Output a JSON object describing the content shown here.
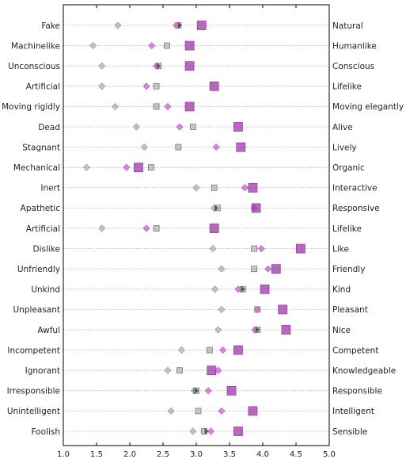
{
  "chart_data": {
    "type": "scatter",
    "title": "",
    "xlabel": "",
    "ylabel": "",
    "xlim": [
      1.0,
      5.0
    ],
    "xticks": [
      "1.0",
      "1.5",
      "2.0",
      "2.5",
      "3.0",
      "3.5",
      "4.0",
      "4.5",
      "5.0"
    ],
    "grid": "horizontal dotted",
    "legend": "none",
    "rows": [
      {
        "left": "Fake",
        "right": "Natural",
        "diamond_gray": 1.82,
        "diamond_pink": 2.7,
        "square_gray": 2.73,
        "square_purple": 3.08,
        "arrow": 2.75
      },
      {
        "left": "Machinelike",
        "right": "Humanlike",
        "diamond_gray": 1.45,
        "diamond_pink": 2.33,
        "square_gray": 2.56,
        "square_purple": 2.9
      },
      {
        "left": "Unconscious",
        "right": "Conscious",
        "diamond_gray": 1.58,
        "diamond_pink": 2.4,
        "square_gray": 2.43,
        "square_purple": 2.9,
        "arrow": 2.43
      },
      {
        "left": "Artificial",
        "right": "Lifelike",
        "diamond_gray": 1.58,
        "diamond_pink": 2.25,
        "square_gray": 2.4,
        "square_purple": 3.27
      },
      {
        "left": "Moving rigidly",
        "right": "Moving elegantly",
        "diamond_gray": 1.78,
        "diamond_pink": 2.57,
        "square_gray": 2.4,
        "square_purple": 2.9
      },
      {
        "left": "Dead",
        "right": "Alive",
        "diamond_gray": 2.1,
        "diamond_pink": 2.75,
        "square_gray": 2.95,
        "square_purple": 3.63
      },
      {
        "left": "Stagnant",
        "right": "Lively",
        "diamond_gray": 2.22,
        "diamond_pink": 3.3,
        "square_gray": 2.73,
        "square_purple": 3.67
      },
      {
        "left": "Mechanical",
        "right": "Organic",
        "diamond_gray": 1.35,
        "diamond_pink": 1.95,
        "square_gray": 2.32,
        "square_purple": 2.13
      },
      {
        "left": "Inert",
        "right": "Interactive",
        "diamond_gray": 3.0,
        "diamond_pink": 3.73,
        "square_gray": 3.27,
        "square_purple": 3.85
      },
      {
        "left": "Apathetic",
        "right": "Responsive",
        "diamond_gray": 3.27,
        "diamond_pink": 3.87,
        "square_gray": 3.32,
        "square_purple": 3.9,
        "arrow": 3.3
      },
      {
        "left": "Artificial",
        "right": "Lifelike",
        "diamond_gray": 1.58,
        "diamond_pink": 2.25,
        "square_gray": 2.4,
        "square_purple": 3.27
      },
      {
        "left": "Dislike",
        "right": "Like",
        "diamond_gray": 3.25,
        "diamond_pink": 3.98,
        "square_gray": 3.87,
        "square_purple": 4.57
      },
      {
        "left": "Unfriendly",
        "right": "Friendly",
        "diamond_gray": 3.38,
        "diamond_pink": 4.08,
        "square_gray": 3.87,
        "square_purple": 4.2
      },
      {
        "left": "Unkind",
        "right": "Kind",
        "diamond_gray": 3.28,
        "diamond_pink": 3.63,
        "square_gray": 3.7,
        "square_purple": 4.03,
        "arrow": 3.7
      },
      {
        "left": "Unpleasant",
        "right": "Pleasant",
        "diamond_gray": 3.38,
        "diamond_pink": 3.92,
        "square_gray": 3.92,
        "square_purple": 4.3
      },
      {
        "left": "Awful",
        "right": "Nice",
        "diamond_gray": 3.33,
        "diamond_pink": 3.88,
        "square_gray": 3.92,
        "square_purple": 4.35,
        "arrow": 3.92
      },
      {
        "left": "Incompetent",
        "right": "Competent",
        "diamond_gray": 2.78,
        "diamond_pink": 3.4,
        "square_gray": 3.2,
        "square_purple": 3.63
      },
      {
        "left": "Ignorant",
        "right": "Knowledgeable",
        "diamond_gray": 2.57,
        "diamond_pink": 3.33,
        "square_gray": 2.75,
        "square_purple": 3.23
      },
      {
        "left": "Irresponsible",
        "right": "Responsible",
        "diamond_gray": 2.97,
        "diamond_pink": 3.18,
        "square_gray": 3.0,
        "square_purple": 3.53,
        "arrow": 3.0
      },
      {
        "left": "Unintelligent",
        "right": "Intelligent",
        "diamond_gray": 2.62,
        "diamond_pink": 3.38,
        "square_gray": 3.03,
        "square_purple": 3.85
      },
      {
        "left": "Foolish",
        "right": "Sensible",
        "diamond_gray": 2.95,
        "diamond_pink": 3.22,
        "square_gray": 3.12,
        "square_purple": 3.63,
        "arrow": 3.15
      }
    ]
  },
  "colors": {
    "gray_marker": "#9a9a9a",
    "pink_marker": "#c764c7",
    "purple_marker": "#9b3aa6",
    "arrow": "#555555",
    "grid": "#999999",
    "axis": "#000000"
  }
}
